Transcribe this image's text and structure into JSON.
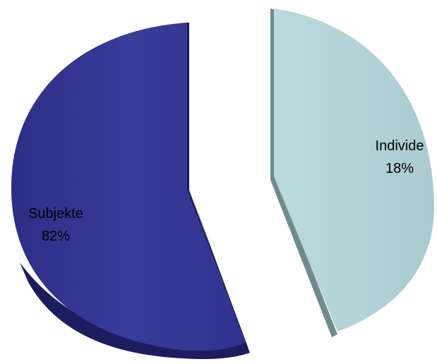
{
  "chart_data": {
    "type": "pie",
    "title": "",
    "slices": [
      {
        "label": "Subjekte",
        "value": 82,
        "display": "82%",
        "color": "#363896"
      },
      {
        "label": "Individe",
        "value": 18,
        "display": "18%",
        "color": "#b3d3d8"
      }
    ],
    "exploded": true,
    "style": "3d-tilted",
    "legend": "none",
    "data_labels": "inside"
  }
}
